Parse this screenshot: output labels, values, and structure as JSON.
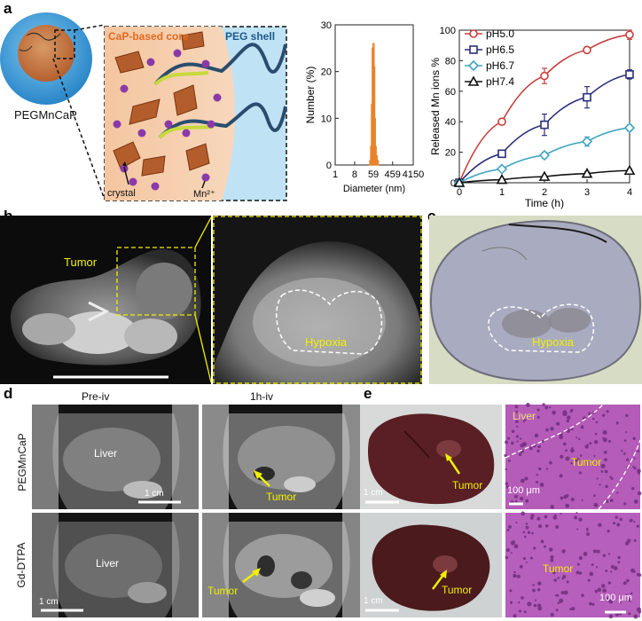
{
  "figure": {
    "panels": {
      "a": "a",
      "b": "b",
      "c": "c",
      "d": "d",
      "e": "e"
    },
    "schematic": {
      "core_label": "CaP-based core",
      "shell_label": "PEG shell",
      "crystal_label": "crystal",
      "ion_label": "Mn²⁺",
      "particle_label": "PEGMnCaP"
    },
    "panel_b": {
      "tumor_label": "Tumor",
      "hypoxia_label": "Hypoxia"
    },
    "panel_c": {
      "hypoxia_label": "Hypoxia"
    },
    "panel_d": {
      "col1_title": "Pre-iv",
      "col2_title": "1h-iv",
      "row1_label": "PEGMnCaP",
      "row2_label": "Gd-DTPA",
      "liver_label_1": "Liver",
      "liver_label_2": "Liver",
      "tumor_label_1": "Tumor",
      "tumor_label_2": "Tumor",
      "scale_1": "1 cm",
      "scale_2": "1 cm"
    },
    "panel_e": {
      "liver_label": "Liver",
      "tumor_label_1": "Tumor",
      "tumor_label_2": "Tumor",
      "tumor_label_3": "Tumor",
      "tumor_label_4": "Tumor",
      "scale_cm_1": "1 cm",
      "scale_cm_2": "1 cm",
      "scale_um_1": "100 μm",
      "scale_um_2": "100 μm"
    }
  },
  "chart_data": [
    {
      "type": "bar",
      "title": "",
      "xlabel": "Diameter (nm)",
      "ylabel": "Number (%)",
      "x_scale": "log",
      "xticks": [
        "1",
        "8",
        "59",
        "459",
        "4150"
      ],
      "yticks": [
        "0",
        "10",
        "20",
        "30"
      ],
      "ylim": [
        0,
        30
      ],
      "bins": [
        {
          "x": 40,
          "value": 1
        },
        {
          "x": 44,
          "value": 4
        },
        {
          "x": 48,
          "value": 13
        },
        {
          "x": 52,
          "value": 25
        },
        {
          "x": 56,
          "value": 26
        },
        {
          "x": 60,
          "value": 21
        },
        {
          "x": 64,
          "value": 10
        },
        {
          "x": 70,
          "value": 4
        },
        {
          "x": 78,
          "value": 2
        },
        {
          "x": 88,
          "value": 1
        }
      ],
      "color": "#e8832a"
    },
    {
      "type": "line",
      "title": "",
      "xlabel": "Time (h)",
      "ylabel": "Released Mn ions %",
      "xlim": [
        0,
        4
      ],
      "ylim": [
        0,
        100
      ],
      "xticks": [
        "0",
        "1",
        "2",
        "3",
        "4"
      ],
      "yticks": [
        "0",
        "20",
        "40",
        "60",
        "80",
        "100"
      ],
      "x": [
        0,
        1,
        2,
        3,
        4
      ],
      "legend_position": "top-left",
      "series": [
        {
          "name": "pH5.0",
          "values": [
            0,
            40,
            70,
            87,
            97
          ],
          "errors": [
            0,
            1.5,
            5,
            2,
            3
          ],
          "color": "#c8403c",
          "marker": "circle"
        },
        {
          "name": "pH6.5",
          "values": [
            0,
            19,
            38,
            56,
            71
          ],
          "errors": [
            0,
            2,
            7,
            7,
            3
          ],
          "color": "#2b2e7a",
          "marker": "square"
        },
        {
          "name": "pH6.7",
          "values": [
            0,
            9,
            18,
            27,
            36
          ],
          "errors": [
            0,
            1.5,
            2,
            3,
            2
          ],
          "color": "#43a6c0",
          "marker": "diamond"
        },
        {
          "name": "pH7.4",
          "values": [
            0,
            2,
            4,
            6,
            8
          ],
          "errors": [
            0,
            0.5,
            0.5,
            1,
            1
          ],
          "color": "#111111",
          "marker": "triangle"
        }
      ]
    }
  ]
}
